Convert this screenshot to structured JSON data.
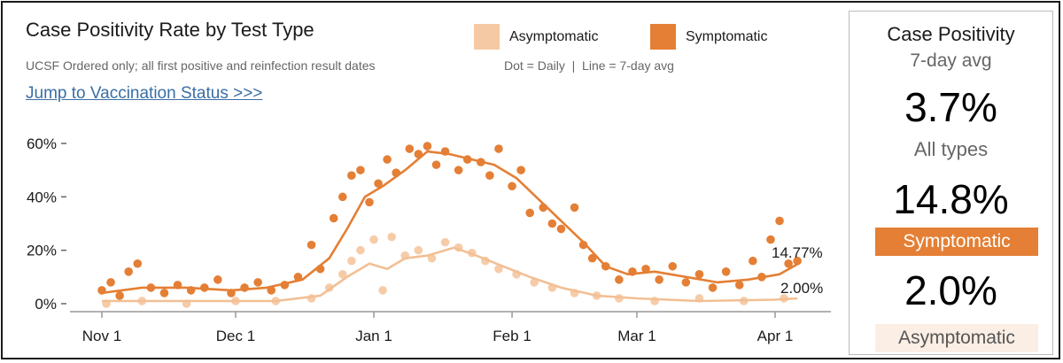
{
  "header": {
    "title": "Case Positivity Rate by Test Type",
    "subtitle": "UCSF Ordered only; all first positive and reinfection result dates",
    "legend_note": "Dot = Daily  |  Line = 7-day avg",
    "jump_link": "Jump to Vaccination Status >>>"
  },
  "legend": {
    "asymptomatic": {
      "label": "Asymptomatic",
      "color": "#f5c9a3"
    },
    "symptomatic": {
      "label": "Symptomatic",
      "color": "#e47f35"
    }
  },
  "chart_data": {
    "type": "scatter",
    "title": "Case Positivity Rate by Test Type",
    "x_ticks": [
      "Nov 1",
      "Dec 1",
      "Jan 1",
      "Feb 1",
      "Mar 1",
      "Apr 1"
    ],
    "y_ticks": [
      "0%",
      "20%",
      "40%",
      "60%"
    ],
    "ylim": [
      0,
      62
    ],
    "grid": false,
    "legend_position": "top",
    "end_labels": {
      "symptomatic": "14.77%",
      "asymptomatic": "2.00%"
    },
    "series": [
      {
        "name": "Symptomatic",
        "color": "#e47f35",
        "avg_points": [
          [
            "2021-11-01",
            4
          ],
          [
            "2021-11-10",
            6
          ],
          [
            "2021-11-20",
            6
          ],
          [
            "2021-11-30",
            5
          ],
          [
            "2021-12-08",
            6
          ],
          [
            "2021-12-16",
            9
          ],
          [
            "2021-12-22",
            17
          ],
          [
            "2021-12-26",
            28
          ],
          [
            "2021-12-30",
            40
          ],
          [
            "2022-01-03",
            44
          ],
          [
            "2022-01-08",
            50
          ],
          [
            "2022-01-13",
            57
          ],
          [
            "2022-01-18",
            56
          ],
          [
            "2022-01-23",
            54
          ],
          [
            "2022-01-28",
            52
          ],
          [
            "2022-02-02",
            47
          ],
          [
            "2022-02-07",
            39
          ],
          [
            "2022-02-12",
            31
          ],
          [
            "2022-02-17",
            23
          ],
          [
            "2022-02-22",
            14
          ],
          [
            "2022-02-27",
            11
          ],
          [
            "2022-03-05",
            12
          ],
          [
            "2022-03-12",
            10
          ],
          [
            "2022-03-19",
            8
          ],
          [
            "2022-03-26",
            9
          ],
          [
            "2022-04-02",
            11
          ],
          [
            "2022-04-06",
            14.77
          ]
        ],
        "daily_points": [
          [
            "2021-11-01",
            5
          ],
          [
            "2021-11-03",
            8
          ],
          [
            "2021-11-05",
            3
          ],
          [
            "2021-11-07",
            12
          ],
          [
            "2021-11-09",
            15
          ],
          [
            "2021-11-12",
            6
          ],
          [
            "2021-11-15",
            4
          ],
          [
            "2021-11-18",
            7
          ],
          [
            "2021-11-21",
            5
          ],
          [
            "2021-11-24",
            6
          ],
          [
            "2021-11-27",
            9
          ],
          [
            "2021-11-30",
            4
          ],
          [
            "2021-12-03",
            6
          ],
          [
            "2021-12-06",
            8
          ],
          [
            "2021-12-09",
            5
          ],
          [
            "2021-12-12",
            7
          ],
          [
            "2021-12-15",
            10
          ],
          [
            "2021-12-18",
            22
          ],
          [
            "2021-12-20",
            13
          ],
          [
            "2021-12-23",
            32
          ],
          [
            "2021-12-25",
            40
          ],
          [
            "2021-12-27",
            48
          ],
          [
            "2021-12-29",
            50
          ],
          [
            "2021-12-31",
            38
          ],
          [
            "2022-01-02",
            45
          ],
          [
            "2022-01-04",
            54
          ],
          [
            "2022-01-06",
            49
          ],
          [
            "2022-01-09",
            58
          ],
          [
            "2022-01-11",
            56
          ],
          [
            "2022-01-13",
            59
          ],
          [
            "2022-01-15",
            52
          ],
          [
            "2022-01-17",
            57
          ],
          [
            "2022-01-20",
            50
          ],
          [
            "2022-01-22",
            54
          ],
          [
            "2022-01-25",
            53
          ],
          [
            "2022-01-27",
            48
          ],
          [
            "2022-01-29",
            58
          ],
          [
            "2022-02-01",
            44
          ],
          [
            "2022-02-03",
            50
          ],
          [
            "2022-02-05",
            34
          ],
          [
            "2022-02-08",
            36
          ],
          [
            "2022-02-10",
            30
          ],
          [
            "2022-02-12",
            28
          ],
          [
            "2022-02-15",
            36
          ],
          [
            "2022-02-17",
            22
          ],
          [
            "2022-02-19",
            17
          ],
          [
            "2022-02-22",
            14
          ],
          [
            "2022-02-25",
            9
          ],
          [
            "2022-02-28",
            12
          ],
          [
            "2022-03-03",
            13
          ],
          [
            "2022-03-06",
            9
          ],
          [
            "2022-03-09",
            14
          ],
          [
            "2022-03-12",
            8
          ],
          [
            "2022-03-15",
            11
          ],
          [
            "2022-03-18",
            6
          ],
          [
            "2022-03-21",
            12
          ],
          [
            "2022-03-24",
            7
          ],
          [
            "2022-03-27",
            16
          ],
          [
            "2022-03-29",
            10
          ],
          [
            "2022-03-31",
            24
          ],
          [
            "2022-04-02",
            31
          ],
          [
            "2022-04-04",
            15
          ],
          [
            "2022-04-06",
            16
          ]
        ]
      },
      {
        "name": "Asymptomatic",
        "color": "#f5c9a3",
        "avg_points": [
          [
            "2021-11-01",
            1
          ],
          [
            "2021-11-20",
            1
          ],
          [
            "2021-12-10",
            1
          ],
          [
            "2021-12-20",
            3
          ],
          [
            "2021-12-26",
            10
          ],
          [
            "2021-12-31",
            15
          ],
          [
            "2022-01-04",
            13
          ],
          [
            "2022-01-08",
            17
          ],
          [
            "2022-01-13",
            18
          ],
          [
            "2022-01-19",
            21
          ],
          [
            "2022-01-24",
            18
          ],
          [
            "2022-01-30",
            14
          ],
          [
            "2022-02-05",
            10
          ],
          [
            "2022-02-12",
            6
          ],
          [
            "2022-02-20",
            3
          ],
          [
            "2022-03-01",
            2
          ],
          [
            "2022-03-15",
            1
          ],
          [
            "2022-04-01",
            1.5
          ],
          [
            "2022-04-06",
            2.0
          ]
        ],
        "daily_points": [
          [
            "2021-11-02",
            0
          ],
          [
            "2021-11-10",
            1
          ],
          [
            "2021-11-20",
            0
          ],
          [
            "2021-12-01",
            1
          ],
          [
            "2021-12-10",
            1
          ],
          [
            "2021-12-18",
            2
          ],
          [
            "2021-12-22",
            6
          ],
          [
            "2021-12-25",
            11
          ],
          [
            "2021-12-27",
            16
          ],
          [
            "2021-12-29",
            20
          ],
          [
            "2022-01-01",
            24
          ],
          [
            "2022-01-03",
            5
          ],
          [
            "2022-01-05",
            25
          ],
          [
            "2022-01-08",
            18
          ],
          [
            "2022-01-11",
            20
          ],
          [
            "2022-01-14",
            17
          ],
          [
            "2022-01-17",
            23
          ],
          [
            "2022-01-20",
            21
          ],
          [
            "2022-01-23",
            19
          ],
          [
            "2022-01-26",
            16
          ],
          [
            "2022-01-29",
            13
          ],
          [
            "2022-02-02",
            11
          ],
          [
            "2022-02-06",
            8
          ],
          [
            "2022-02-10",
            6
          ],
          [
            "2022-02-15",
            4
          ],
          [
            "2022-02-20",
            3
          ],
          [
            "2022-02-25",
            2
          ],
          [
            "2022-03-05",
            1
          ],
          [
            "2022-03-15",
            2
          ],
          [
            "2022-03-25",
            1
          ],
          [
            "2022-04-03",
            2
          ]
        ]
      }
    ]
  },
  "panel": {
    "heading": "Case Positivity",
    "subheading": "7-day avg",
    "all_value": "3.7%",
    "all_label": "All types",
    "sym_value": "14.8%",
    "sym_label": "Symptomatic",
    "asym_value": "2.0%",
    "asym_label": "Asymptomatic"
  }
}
